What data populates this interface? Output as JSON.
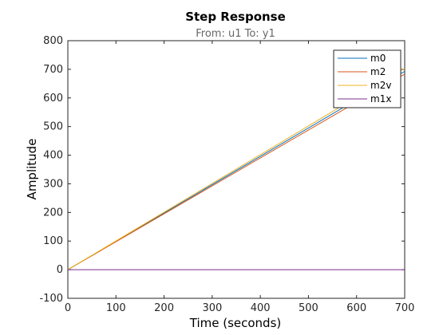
{
  "chart_data": {
    "type": "line",
    "title": "Step Response",
    "subtitle": "From: u1  To: y1",
    "xlabel": "Time (seconds)",
    "ylabel": "Amplitude",
    "xlim": [
      0,
      700
    ],
    "ylim": [
      -100,
      800
    ],
    "xticks": [
      "0",
      "100",
      "200",
      "300",
      "400",
      "500",
      "600",
      "700"
    ],
    "yticks": [
      "-100",
      "0",
      "100",
      "200",
      "300",
      "400",
      "500",
      "600",
      "700",
      "800"
    ],
    "grid": false,
    "legend_position": "top-right",
    "series": [
      {
        "name": "m0",
        "color": "#0072BD",
        "x": [
          0,
          700
        ],
        "y": [
          0,
          693
        ]
      },
      {
        "name": "m2",
        "color": "#D95319",
        "x": [
          0,
          700
        ],
        "y": [
          0,
          683
        ]
      },
      {
        "name": "m2v",
        "color": "#EDB120",
        "x": [
          0,
          700
        ],
        "y": [
          0,
          703
        ]
      },
      {
        "name": "m1x",
        "color": "#7E2F8E",
        "x": [
          0,
          700
        ],
        "y": [
          0,
          0
        ]
      }
    ]
  }
}
